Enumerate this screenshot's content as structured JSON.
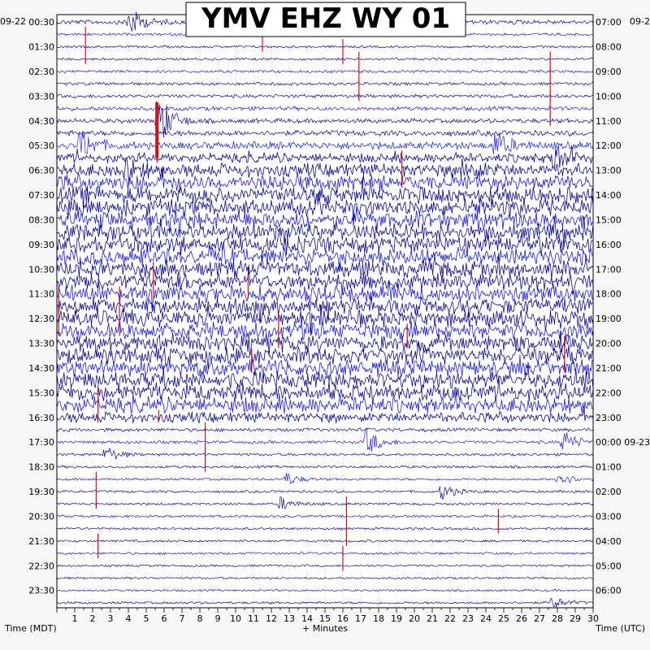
{
  "chart_data": {
    "type": "helicorder",
    "title": "YMV EHZ WY 01",
    "left_date": "09-22",
    "right_date": "09-2",
    "left_axis_title": "Time (MDT)",
    "right_axis_title": "Time (UTC)",
    "x_axis_title": "+ Minutes",
    "xlim": [
      0,
      30
    ],
    "x_ticks": [
      1,
      2,
      3,
      4,
      5,
      6,
      7,
      8,
      9,
      10,
      11,
      12,
      13,
      14,
      15,
      16,
      17,
      18,
      19,
      20,
      21,
      22,
      23,
      24,
      25,
      26,
      27,
      28,
      29,
      30
    ],
    "left_hours": [
      "00:30",
      "01:30",
      "02:30",
      "03:30",
      "04:30",
      "05:30",
      "06:30",
      "07:30",
      "08:30",
      "09:30",
      "10:30",
      "11:30",
      "12:30",
      "13:30",
      "14:30",
      "15:30",
      "16:30",
      "17:30",
      "18:30",
      "19:30",
      "20:30",
      "21:30",
      "22:30",
      "23:30"
    ],
    "right_hours": [
      "07:00",
      "08:00",
      "09:00",
      "10:00",
      "11:00",
      "12:00",
      "13:00",
      "14:00",
      "15:00",
      "16:00",
      "17:00",
      "18:00",
      "19:00",
      "20:00",
      "21:00",
      "22:00",
      "23:00",
      "00:00 09-23",
      "01:00",
      "02:00",
      "03:00",
      "04:00",
      "05:00",
      "06:00"
    ],
    "trace_colors": [
      "#0a0a8c",
      "#d11010",
      "#1a1adb",
      "#1f7a1f"
    ],
    "traces_per_hour": 2,
    "activity_profile": [
      0.25,
      0.12,
      0.1,
      0.1,
      0.13,
      0.15,
      0.18,
      0.22,
      0.25,
      0.32,
      0.45,
      0.55,
      0.8,
      0.95,
      1.0,
      1.0,
      1.0,
      1.0,
      1.0,
      1.0,
      1.0,
      1.0,
      1.0,
      1.0,
      1.0,
      1.0,
      1.0,
      1.0,
      1.0,
      1.0,
      1.0,
      0.95,
      0.6,
      0.18,
      0.15,
      0.12,
      0.12,
      0.1,
      0.1,
      0.1,
      0.1,
      0.1,
      0.1,
      0.1,
      0.08,
      0.08,
      0.08,
      0.1
    ],
    "events": [
      {
        "row": 0,
        "minute": 4.0,
        "amp": 1.5
      },
      {
        "row": 8,
        "minute": 5.6,
        "amp": 3.0
      },
      {
        "row": 10,
        "minute": 1.3,
        "amp": 1.5
      },
      {
        "row": 10,
        "minute": 24.5,
        "amp": 1.3
      },
      {
        "row": 11,
        "minute": 27.8,
        "amp": 1.2
      },
      {
        "row": 12,
        "minute": 3.8,
        "amp": 1.0
      },
      {
        "row": 12,
        "minute": 22.7,
        "amp": 1.2
      },
      {
        "row": 34,
        "minute": 17.3,
        "amp": 1.3
      },
      {
        "row": 34,
        "minute": 28.3,
        "amp": 1.2
      },
      {
        "row": 35,
        "minute": 2.7,
        "amp": 0.8
      },
      {
        "row": 37,
        "minute": 12.8,
        "amp": 0.6
      },
      {
        "row": 37,
        "minute": 28.0,
        "amp": 0.8
      },
      {
        "row": 38,
        "minute": 21.5,
        "amp": 0.8
      },
      {
        "row": 39,
        "minute": 12.5,
        "amp": 0.6
      },
      {
        "row": 47,
        "minute": 27.7,
        "amp": 0.6
      }
    ],
    "picks": [
      {
        "row": 1,
        "minute": 1.6,
        "len": 3
      },
      {
        "row": 1,
        "minute": 11.5,
        "len": 2
      },
      {
        "row": 2,
        "minute": 16.0,
        "len": 2
      },
      {
        "row": 3,
        "minute": 16.9,
        "len": 4
      },
      {
        "row": 3,
        "minute": 27.6,
        "len": 6
      },
      {
        "row": 8,
        "minute": 5.6,
        "len": 4
      },
      {
        "row": 11,
        "minute": 19.3,
        "len": 3
      },
      {
        "row": 20,
        "minute": 5.4,
        "len": 3
      },
      {
        "row": 21,
        "minute": 10.7,
        "len": 2
      },
      {
        "row": 22,
        "minute": 0.1,
        "len": 4
      },
      {
        "row": 22,
        "minute": 3.5,
        "len": 4
      },
      {
        "row": 24,
        "minute": 12.4,
        "len": 3
      },
      {
        "row": 25,
        "minute": 19.6,
        "len": 2
      },
      {
        "row": 26,
        "minute": 28.4,
        "len": 3
      },
      {
        "row": 27,
        "minute": 10.9,
        "len": 2
      },
      {
        "row": 30,
        "minute": 2.3,
        "len": 3
      },
      {
        "row": 32,
        "minute": 5.7,
        "len": 1
      },
      {
        "row": 33,
        "minute": 8.3,
        "len": 4
      },
      {
        "row": 37,
        "minute": 2.2,
        "len": 3
      },
      {
        "row": 39,
        "minute": 16.2,
        "len": 4
      },
      {
        "row": 40,
        "minute": 24.7,
        "len": 2
      },
      {
        "row": 42,
        "minute": 2.3,
        "len": 2
      },
      {
        "row": 43,
        "minute": 16.0,
        "len": 2
      }
    ]
  }
}
